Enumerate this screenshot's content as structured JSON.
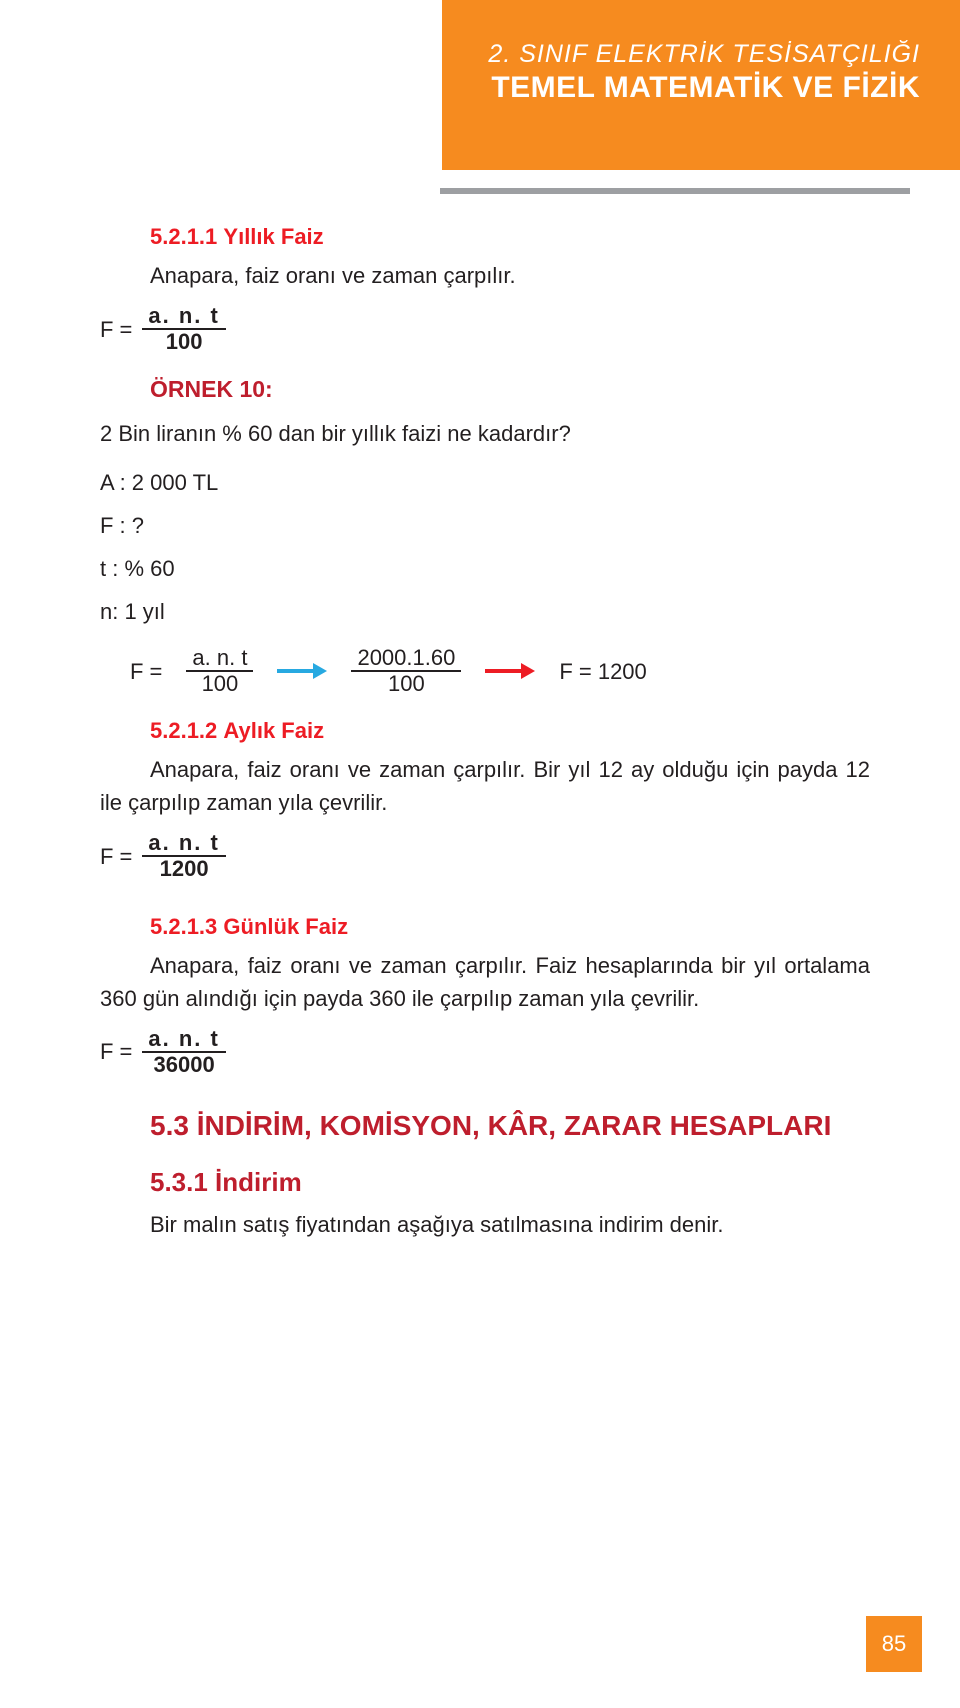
{
  "header": {
    "subtitle": "2. SINIF ELEKTRİK TESİSATÇILIĞI",
    "title": "TEMEL MATEMATİK VE FİZİK"
  },
  "sec521_1": {
    "num": "5.2.1.1",
    "title": "Yıllık Faiz"
  },
  "p1": "Anapara, faiz oranı ve zaman çarpılır.",
  "f1": {
    "lhs": "F =",
    "num": "a. n. t",
    "den": "100"
  },
  "ornek10": "ÖRNEK 10:",
  "q": "2 Bin liranın % 60 dan bir yıllık faizi ne kadardır?",
  "given": {
    "A": "A : 2 000 TL",
    "F": "F : ?",
    "t": "t : % 60",
    "n": "n: 1 yıl"
  },
  "calc": {
    "lhs": "F =",
    "f1num": "a. n. t",
    "f1den": "100",
    "f2num": "2000.1.60",
    "f2den": "100",
    "res": "F = 1200"
  },
  "sec521_2": {
    "num": "5.2.1.2",
    "title": "Aylık Faiz"
  },
  "p2": "Anapara, faiz oranı ve zaman çarpılır. Bir yıl 12 ay olduğu için payda 12 ile çarpılıp zaman yıla çevrilir.",
  "f2": {
    "lhs": "F =",
    "num": "a. n. t",
    "den": "1200"
  },
  "sec521_3": {
    "num": "5.2.1.3",
    "title": "Günlük Faiz"
  },
  "p3": "Anapara, faiz oranı ve zaman çarpılır. Faiz hesaplarında bir yıl ortalama 360 gün alındığı için payda 360 ile çarpılıp zaman yıla çevrilir.",
  "f3": {
    "lhs": "F =",
    "num": "a. n. t",
    "den": "36000"
  },
  "h53": "5.3 İNDİRİM, KOMİSYON, KÂR, ZARAR HESAPLARI",
  "h531": "5.3.1 İndirim",
  "p4": "Bir malın satış fiyatından aşağıya satılmasına indirim denir.",
  "page": "85",
  "colors": {
    "orange": "#f68b1f",
    "gray": "#9d9fa2",
    "red_heading": "#ed1c24",
    "dark_red": "#be1e2d",
    "arrow_blue": "#27a9e1",
    "arrow_red": "#ed1c24",
    "text": "#231f20"
  }
}
